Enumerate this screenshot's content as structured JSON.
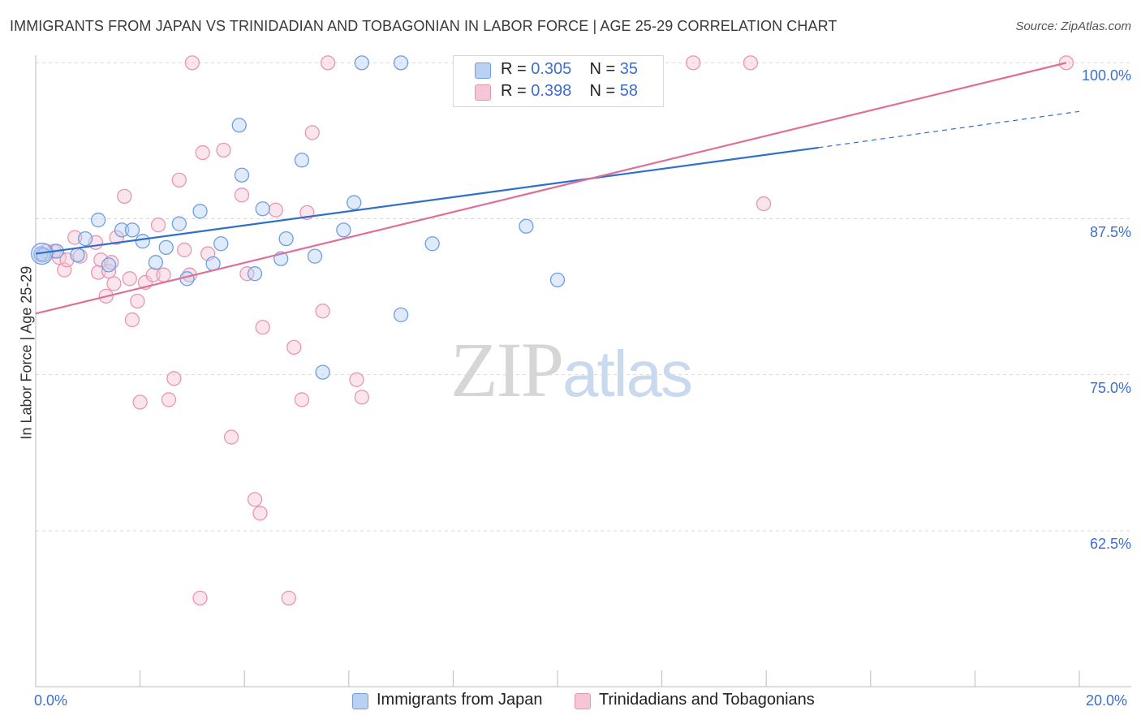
{
  "title": "IMMIGRANTS FROM JAPAN VS TRINIDADIAN AND TOBAGONIAN IN LABOR FORCE | AGE 25-29 CORRELATION CHART",
  "source": "Source: ZipAtlas.com",
  "watermark": {
    "zip": "ZIP",
    "atlas": "atlas"
  },
  "colors": {
    "blue_fill": "#b9d1f3",
    "blue_stroke": "#6e9fe0",
    "blue_line": "#2f6fcc",
    "pink_fill": "#f7c6d6",
    "pink_stroke": "#e995b1",
    "pink_line": "#e06f97",
    "grid": "#d9d9d9",
    "axis_label": "#3b6fd0"
  },
  "legend": {
    "rows": [
      {
        "r_label": "R =",
        "r_value": "0.305",
        "n_label": "N =",
        "n_value": "35",
        "color": "#b9d1f3",
        "stroke": "#6e9fe0"
      },
      {
        "r_label": "R =",
        "r_value": "0.398",
        "n_label": "N =",
        "n_value": "58",
        "color": "#f7c6d6",
        "stroke": "#e995b1"
      }
    ],
    "bottom": [
      {
        "label": "Immigrants from Japan",
        "color": "#b9d1f3",
        "stroke": "#6e9fe0"
      },
      {
        "label": "Trinidadians and Tobagonians",
        "color": "#f7c6d6",
        "stroke": "#e995b1"
      }
    ]
  },
  "chart_data": {
    "type": "scatter",
    "title": "IMMIGRANTS FROM JAPAN VS TRINIDADIAN AND TOBAGONIAN IN LABOR FORCE | AGE 25-29 CORRELATION CHART",
    "xlabel": "",
    "ylabel": "In Labor Force | Age 25-29",
    "xlim": [
      0,
      20
    ],
    "ylim": [
      50,
      101
    ],
    "x_tick_labels": [
      "0.0%",
      "20.0%"
    ],
    "y_ticks": [
      62.5,
      75.0,
      87.5,
      100.0
    ],
    "y_tick_labels": [
      "62.5%",
      "75.0%",
      "87.5%",
      "100.0%"
    ],
    "grid": true,
    "legend_position": "top-center",
    "series": [
      {
        "name": "Immigrants from Japan",
        "color": "#6e9fe0",
        "trend": {
          "x0": 0.0,
          "y0": 84.7,
          "x1": 15.0,
          "y1": 93.2,
          "dash_to_x": 20.0,
          "dash_to_y": 96.1
        },
        "points": [
          [
            0.1,
            84.7
          ],
          [
            0.4,
            84.9
          ],
          [
            0.8,
            84.6
          ],
          [
            0.95,
            85.9
          ],
          [
            1.2,
            87.4
          ],
          [
            1.4,
            83.8
          ],
          [
            1.65,
            86.6
          ],
          [
            1.85,
            86.6
          ],
          [
            2.05,
            85.7
          ],
          [
            2.3,
            84.0
          ],
          [
            2.5,
            85.2
          ],
          [
            2.75,
            87.1
          ],
          [
            2.9,
            82.7
          ],
          [
            3.15,
            88.1
          ],
          [
            3.4,
            83.9
          ],
          [
            3.55,
            85.5
          ],
          [
            3.9,
            95.0
          ],
          [
            3.95,
            91.0
          ],
          [
            4.2,
            83.1
          ],
          [
            4.35,
            88.3
          ],
          [
            4.7,
            84.3
          ],
          [
            4.8,
            85.9
          ],
          [
            5.1,
            92.2
          ],
          [
            5.35,
            84.5
          ],
          [
            5.5,
            75.2
          ],
          [
            5.9,
            86.6
          ],
          [
            6.1,
            88.8
          ],
          [
            6.25,
            100.0
          ],
          [
            7.0,
            79.8
          ],
          [
            7.0,
            100.0
          ],
          [
            7.6,
            85.5
          ],
          [
            9.4,
            86.9
          ],
          [
            10.0,
            82.6
          ],
          [
            11.3,
            100.0
          ],
          [
            0.15,
            84.6
          ]
        ]
      },
      {
        "name": "Trinidadians and Tobagonians",
        "color": "#e995b1",
        "trend": {
          "x0": 0.0,
          "y0": 79.9,
          "x1": 19.75,
          "y1": 100.0
        },
        "points": [
          [
            0.1,
            84.6
          ],
          [
            0.35,
            84.9
          ],
          [
            0.45,
            84.4
          ],
          [
            0.55,
            83.4
          ],
          [
            0.6,
            84.2
          ],
          [
            0.75,
            86.0
          ],
          [
            0.85,
            84.5
          ],
          [
            1.15,
            85.6
          ],
          [
            1.2,
            83.2
          ],
          [
            1.25,
            84.2
          ],
          [
            1.35,
            81.3
          ],
          [
            1.4,
            83.3
          ],
          [
            1.45,
            84.0
          ],
          [
            1.5,
            82.3
          ],
          [
            1.55,
            86.0
          ],
          [
            1.7,
            89.3
          ],
          [
            1.8,
            82.7
          ],
          [
            1.85,
            79.4
          ],
          [
            1.95,
            80.9
          ],
          [
            2.0,
            72.8
          ],
          [
            2.1,
            82.4
          ],
          [
            2.25,
            83.0
          ],
          [
            2.35,
            87.0
          ],
          [
            2.45,
            83.0
          ],
          [
            2.55,
            73.0
          ],
          [
            2.65,
            74.7
          ],
          [
            2.75,
            90.6
          ],
          [
            2.85,
            85.0
          ],
          [
            2.95,
            83.0
          ],
          [
            3.0,
            100.0
          ],
          [
            3.15,
            57.1
          ],
          [
            3.2,
            92.8
          ],
          [
            3.3,
            84.7
          ],
          [
            3.6,
            93.0
          ],
          [
            3.75,
            70.0
          ],
          [
            3.95,
            89.4
          ],
          [
            4.05,
            83.1
          ],
          [
            4.2,
            65.0
          ],
          [
            4.3,
            63.9
          ],
          [
            4.35,
            78.8
          ],
          [
            4.6,
            88.2
          ],
          [
            4.85,
            57.1
          ],
          [
            4.95,
            77.2
          ],
          [
            5.1,
            73.0
          ],
          [
            5.2,
            88.0
          ],
          [
            5.3,
            94.4
          ],
          [
            5.5,
            80.1
          ],
          [
            5.6,
            100.0
          ],
          [
            6.15,
            74.6
          ],
          [
            6.25,
            73.2
          ],
          [
            9.5,
            100.0
          ],
          [
            11.05,
            100.0
          ],
          [
            11.35,
            100.0
          ],
          [
            12.6,
            100.0
          ],
          [
            13.7,
            100.0
          ],
          [
            13.95,
            88.7
          ],
          [
            19.75,
            100.0
          ],
          [
            0.2,
            84.9
          ]
        ]
      }
    ]
  }
}
